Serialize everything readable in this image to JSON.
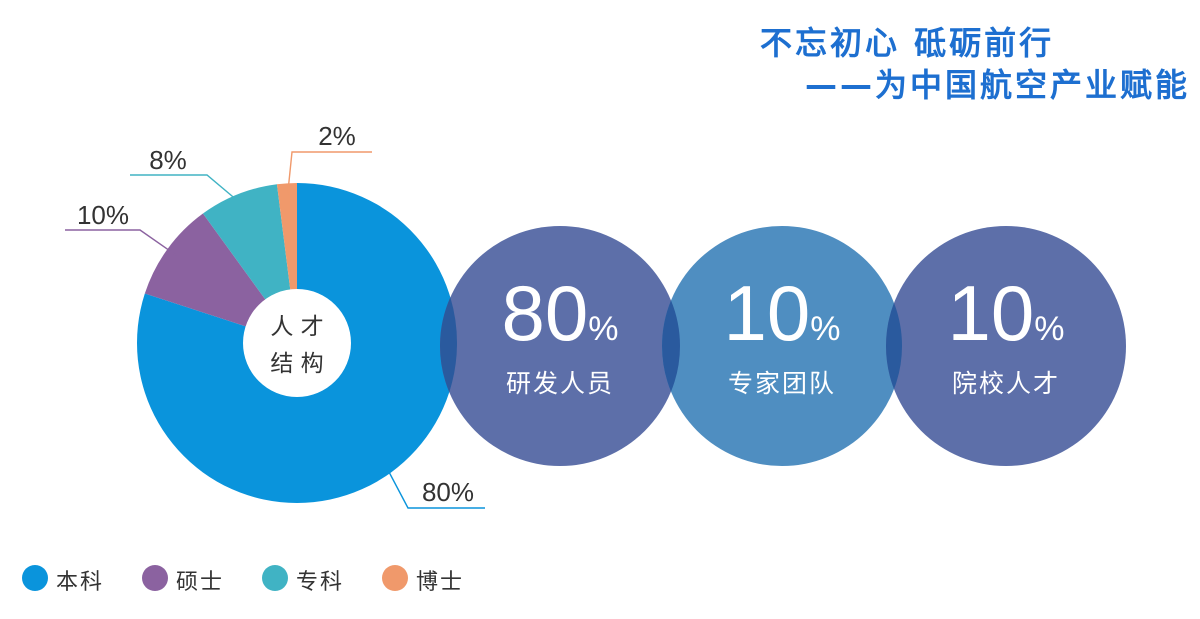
{
  "header": {
    "slogan_line1": "不忘初心  砥砺前行",
    "slogan_line2": "——为中国航空产业赋能"
  },
  "chart_data": {
    "type": "pie",
    "variant": "donut",
    "title": "",
    "center_label": [
      "人 才",
      "结 构"
    ],
    "slices": [
      {
        "name": "本科",
        "value": 80,
        "label": "80%",
        "color": "#0a94dc"
      },
      {
        "name": "硕士",
        "value": 10,
        "label": "10%",
        "color": "#8b62a0"
      },
      {
        "name": "专科",
        "value": 8,
        "label": "8%",
        "color": "#40b3c4"
      },
      {
        "name": "博士",
        "value": 2,
        "label": "2%",
        "color": "#f0996b"
      }
    ],
    "legend_position": "bottom-left"
  },
  "stats": [
    {
      "value": "80",
      "unit": "%",
      "caption": "研发人员",
      "color": "#5d6fa9"
    },
    {
      "value": "10",
      "unit": "%",
      "caption": "专家团队",
      "color": "#4f8ec1"
    },
    {
      "value": "10",
      "unit": "%",
      "caption": "院校人才",
      "color": "#5d6fa9"
    }
  ],
  "colors": {
    "slogan": "#1d6fd0",
    "overlap": "#2a5a9e"
  }
}
